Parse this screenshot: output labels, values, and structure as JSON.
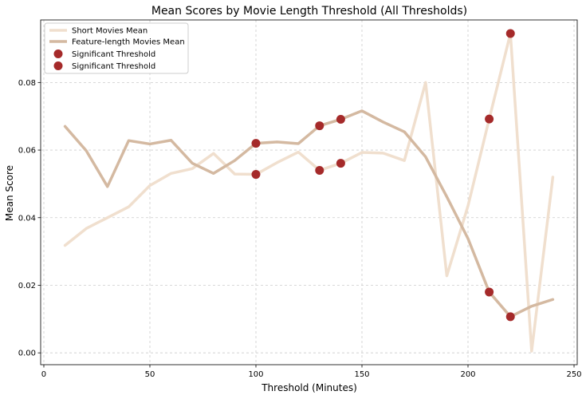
{
  "chart_data": {
    "type": "line",
    "title": "Mean Scores by Movie Length Threshold (All Thresholds)",
    "xlabel": "Threshold (Minutes)",
    "ylabel": "Mean Score",
    "xlim": [
      -1.5,
      251.5
    ],
    "ylim": [
      -0.0035,
      0.0985
    ],
    "xticks": [
      0,
      50,
      100,
      150,
      200,
      250
    ],
    "yticks": [
      0.0,
      0.02,
      0.04,
      0.06,
      0.08
    ],
    "xtick_labels": [
      "0",
      "50",
      "100",
      "150",
      "200",
      "250"
    ],
    "ytick_labels": [
      "0.00",
      "0.02",
      "0.04",
      "0.06",
      "0.08"
    ],
    "grid": true,
    "legend_position": "top-left",
    "x": [
      10,
      20,
      30,
      40,
      50,
      60,
      70,
      80,
      90,
      100,
      110,
      120,
      130,
      140,
      150,
      160,
      170,
      180,
      190,
      200,
      210,
      220,
      230,
      240
    ],
    "series": [
      {
        "name": "Short Movies Mean",
        "color": "#f0dfce",
        "values": [
          0.0318,
          0.0368,
          0.04,
          0.0432,
          0.0495,
          0.0531,
          0.0545,
          0.059,
          0.0529,
          0.0528,
          0.0563,
          0.0594,
          0.054,
          0.0561,
          0.0593,
          0.0591,
          0.0569,
          0.08,
          0.0228,
          0.0435,
          0.0692,
          0.0945,
          0.0005,
          0.052
        ]
      },
      {
        "name": "Feature-length Movies Mean",
        "color": "#d4b9a1",
        "values": [
          0.067,
          0.0598,
          0.0492,
          0.0628,
          0.0618,
          0.0629,
          0.0561,
          0.0531,
          0.0569,
          0.062,
          0.0624,
          0.0619,
          0.0672,
          0.0691,
          0.0716,
          0.0683,
          0.0654,
          0.058,
          0.0462,
          0.0338,
          0.018,
          0.0107,
          0.0138,
          0.0158
        ]
      }
    ],
    "significant_points": [
      {
        "name": "Significant Threshold",
        "color": "#a52a2a",
        "points": [
          [
            100,
            0.0528
          ],
          [
            130,
            0.054
          ],
          [
            140,
            0.0561
          ],
          [
            210,
            0.0692
          ],
          [
            220,
            0.0945
          ]
        ]
      },
      {
        "name": "Significant Threshold",
        "color": "#a52a2a",
        "points": [
          [
            100,
            0.062
          ],
          [
            130,
            0.0672
          ],
          [
            140,
            0.0691
          ],
          [
            210,
            0.018
          ],
          [
            220,
            0.0107
          ]
        ]
      }
    ]
  }
}
